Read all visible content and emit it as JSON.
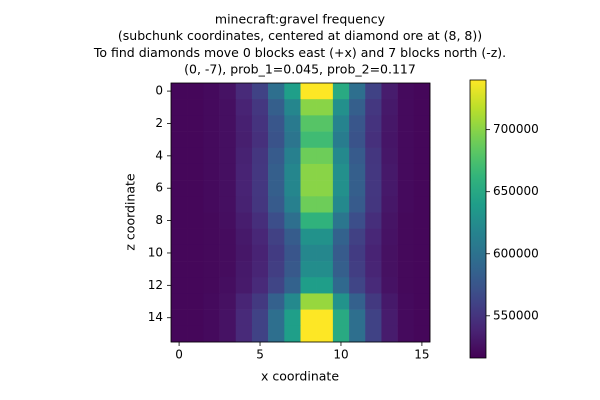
{
  "chart_data": {
    "type": "heatmap",
    "title": [
      "minecraft:gravel frequency",
      "(subchunk coordinates, centered at diamond ore at (8, 8))",
      "To find diamonds move 0 blocks east (+x) and 7 blocks north (-z).",
      "(0, -7), prob_1=0.045, prob_2=0.117"
    ],
    "xlabel": "x coordinate",
    "ylabel": "z coordinate",
    "xlim": [
      -0.5,
      15.5
    ],
    "ylim": [
      15.5,
      -0.5
    ],
    "xticks": [
      0,
      5,
      10,
      15
    ],
    "yticks": [
      0,
      2,
      4,
      6,
      8,
      10,
      12,
      14
    ],
    "colormap": "viridis",
    "values": [
      [
        520000,
        520000,
        522000,
        527000,
        542000,
        560000,
        597000,
        641000,
        740000,
        740000,
        652000,
        597000,
        560000,
        533000,
        522000,
        520000
      ],
      [
        520000,
        520000,
        522000,
        525000,
        538000,
        552000,
        583000,
        619000,
        700000,
        700000,
        628000,
        583000,
        552000,
        531000,
        522000,
        520000
      ],
      [
        520000,
        520000,
        522000,
        525000,
        536000,
        549000,
        576000,
        608000,
        680000,
        680000,
        616000,
        576000,
        549000,
        530000,
        522000,
        520000
      ],
      [
        520000,
        520000,
        522000,
        525000,
        535000,
        547000,
        573000,
        603000,
        670000,
        670000,
        610000,
        573000,
        547000,
        529000,
        522000,
        520000
      ],
      [
        520000,
        520000,
        522000,
        525000,
        537000,
        551000,
        580000,
        614000,
        690000,
        690000,
        622000,
        580000,
        551000,
        530000,
        522000,
        520000
      ],
      [
        520000,
        520000,
        522000,
        525000,
        538000,
        552000,
        583000,
        619000,
        700000,
        700000,
        628000,
        583000,
        552000,
        531000,
        522000,
        520000
      ],
      [
        520000,
        520000,
        522000,
        525000,
        538000,
        552000,
        583000,
        619000,
        700000,
        700000,
        628000,
        583000,
        552000,
        531000,
        522000,
        520000
      ],
      [
        520000,
        520000,
        522000,
        525000,
        537000,
        551000,
        580000,
        614000,
        690000,
        690000,
        622000,
        580000,
        551000,
        530000,
        522000,
        520000
      ],
      [
        520000,
        520000,
        521000,
        524000,
        534000,
        545000,
        569000,
        597000,
        660000,
        660000,
        604000,
        569000,
        545000,
        528000,
        521000,
        520000
      ],
      [
        520000,
        520000,
        521000,
        523000,
        531000,
        540000,
        559000,
        581000,
        630000,
        630000,
        586000,
        559000,
        540000,
        527000,
        521000,
        520000
      ],
      [
        520000,
        520000,
        521000,
        523000,
        530000,
        538000,
        555000,
        575000,
        620000,
        620000,
        580000,
        555000,
        538000,
        526000,
        521000,
        520000
      ],
      [
        520000,
        520000,
        521000,
        523000,
        531000,
        539000,
        557000,
        578000,
        625000,
        625000,
        583000,
        557000,
        539000,
        526000,
        521000,
        520000
      ],
      [
        520000,
        520000,
        521000,
        524000,
        532000,
        542000,
        562000,
        586000,
        640000,
        640000,
        592000,
        562000,
        542000,
        527000,
        521000,
        520000
      ],
      [
        520000,
        520000,
        522000,
        526000,
        539000,
        553000,
        585000,
        622000,
        705000,
        705000,
        631000,
        585000,
        553000,
        531000,
        522000,
        520000
      ],
      [
        520000,
        520000,
        522000,
        527000,
        542000,
        560000,
        597000,
        641000,
        740000,
        740000,
        652000,
        597000,
        560000,
        533000,
        522000,
        520000
      ],
      [
        520000,
        520000,
        522000,
        527000,
        542000,
        560000,
        597000,
        641000,
        740000,
        740000,
        652000,
        597000,
        560000,
        533000,
        522000,
        520000
      ]
    ],
    "colorbar": {
      "lim": [
        516000,
        740000
      ],
      "ticks": [
        550000,
        600000,
        650000,
        700000
      ]
    }
  }
}
